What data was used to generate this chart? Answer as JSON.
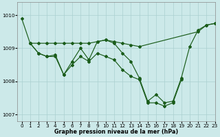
{
  "title": "Graphe pression niveau de la mer (hPa)",
  "background_color": "#cce9e9",
  "grid_color": "#aad0d0",
  "line_color": "#1a5c1a",
  "xlim": [
    -0.5,
    23
  ],
  "ylim": [
    1006.8,
    1010.4
  ],
  "yticks": [
    1007,
    1008,
    1009,
    1010
  ],
  "xticks": [
    0,
    1,
    2,
    3,
    4,
    5,
    6,
    7,
    8,
    9,
    10,
    11,
    12,
    13,
    14,
    15,
    16,
    17,
    18,
    19,
    20,
    21,
    22,
    23
  ],
  "upper_line": {
    "x": [
      0,
      1,
      2,
      3,
      4,
      5,
      6,
      7,
      8,
      9,
      10,
      11,
      12,
      13,
      14,
      21,
      22,
      23
    ],
    "y": [
      1009.9,
      1009.15,
      1009.15,
      1009.15,
      1009.15,
      1009.15,
      1009.15,
      1009.15,
      1009.15,
      1009.2,
      1009.25,
      1009.2,
      1009.15,
      1009.1,
      1009.05,
      1009.5,
      1009.7,
      1009.75
    ]
  },
  "lower_line": {
    "x": [
      1,
      2,
      3,
      4,
      5,
      6,
      7,
      8,
      9,
      10,
      11,
      12,
      13,
      14,
      15,
      16,
      17,
      18,
      19
    ],
    "y": [
      1009.15,
      1008.85,
      1008.75,
      1008.75,
      1008.2,
      1008.5,
      1008.75,
      1008.6,
      1008.85,
      1008.75,
      1008.65,
      1008.35,
      1008.15,
      1008.05,
      1007.35,
      1007.35,
      1007.25,
      1007.35,
      1008.05
    ]
  },
  "zigzag_line": {
    "x": [
      1,
      2,
      3,
      4,
      5,
      6,
      7,
      8,
      9,
      10,
      11,
      12,
      13,
      14,
      15,
      16,
      17,
      18,
      19,
      20,
      21,
      22,
      23
    ],
    "y": [
      1009.15,
      1008.85,
      1008.75,
      1008.8,
      1008.2,
      1008.6,
      1009.0,
      1008.65,
      1009.2,
      1009.25,
      1009.15,
      1008.85,
      1008.6,
      1008.1,
      1007.4,
      1007.6,
      1007.35,
      1007.4,
      1008.1,
      1009.05,
      1009.55,
      1009.7,
      1009.75
    ]
  },
  "connect_line": {
    "x": [
      0,
      1
    ],
    "y": [
      1009.9,
      1009.15
    ]
  }
}
